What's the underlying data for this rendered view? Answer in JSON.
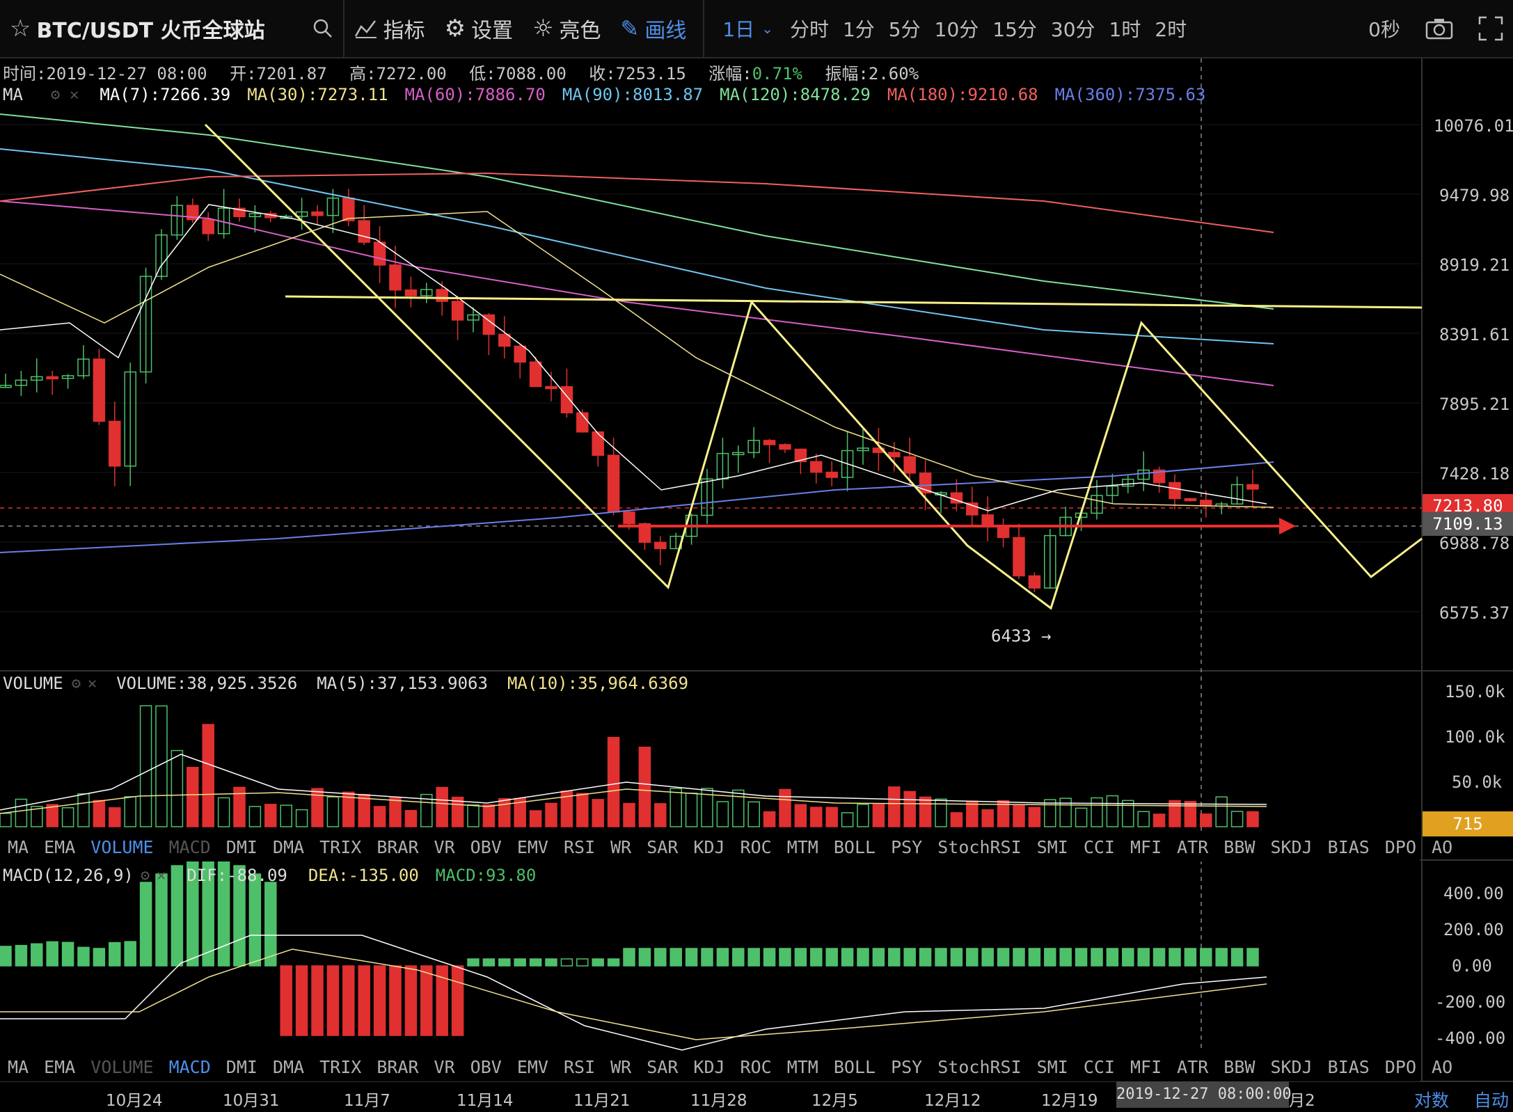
{
  "topbar": {
    "symbol": "BTC/USDT 火币全球站",
    "indicators": "指标",
    "settings": "设置",
    "theme": "亮色",
    "draw": "画线",
    "timeframes": [
      "1日",
      "分时",
      "1分",
      "5分",
      "10分",
      "15分",
      "30分",
      "1时",
      "2时"
    ],
    "active_timeframe": "1日",
    "countdown": "0秒"
  },
  "ohlc": {
    "time": "时间:2019-12-27 08:00",
    "open": "开:7201.87",
    "high": "高:7272.00",
    "low": "低:7088.00",
    "close": "收:7253.15",
    "change_label": "涨幅:",
    "change": "0.71%",
    "amp_label": "振幅:",
    "amp": "2.60%"
  },
  "ma_legend": {
    "title": "MA",
    "items": [
      {
        "text": "MA(7):7266.39",
        "color": "#ffffff"
      },
      {
        "text": "MA(30):7273.11",
        "color": "#f2e38f"
      },
      {
        "text": "MA(60):7886.70",
        "color": "#d860c8"
      },
      {
        "text": "MA(90):8013.87",
        "color": "#6ec6f0"
      },
      {
        "text": "MA(120):8478.29",
        "color": "#7fe29a"
      },
      {
        "text": "MA(180):9210.68",
        "color": "#f06060"
      },
      {
        "text": "MA(360):7375.63",
        "color": "#6a7fe8"
      }
    ]
  },
  "price_axis": [
    "10076.01",
    "9479.98",
    "8919.21",
    "8391.61",
    "7895.21",
    "7428.18",
    "6988.78",
    "6575.37"
  ],
  "price_tags": {
    "current": "7213.80",
    "cursor": "7109.13"
  },
  "annotation_low": "6433",
  "volume": {
    "title": "VOLUME",
    "value": "VOLUME:38,925.3526",
    "ma5": "MA(5):37,153.9063",
    "ma10": "MA(10):35,964.6369",
    "axis": [
      "150.0k",
      "100.0k",
      "50.0k"
    ],
    "tag": "715"
  },
  "indicator_tabs": [
    "MA",
    "EMA",
    "VOLUME",
    "MACD",
    "DMI",
    "DMA",
    "TRIX",
    "BRAR",
    "VR",
    "OBV",
    "EMV",
    "RSI",
    "WR",
    "SAR",
    "KDJ",
    "ROC",
    "MTM",
    "BOLL",
    "PSY",
    "StochRSI",
    "SMI",
    "CCI",
    "MFI",
    "ATR",
    "BBW",
    "SKDJ",
    "BIAS",
    "DPO",
    "AO"
  ],
  "macd": {
    "title": "MACD(12,26,9)",
    "dif": "DIF:-88.09",
    "dea": "DEA:-135.00",
    "macd": "MACD:93.80",
    "axis": [
      "400.00",
      "200.00",
      "0.00",
      "-200.00",
      "-400.00"
    ]
  },
  "time_axis": [
    "10月24",
    "10月31",
    "11月7",
    "11月14",
    "11月21",
    "11月28",
    "12月5",
    "12月12",
    "12月19",
    "月2"
  ],
  "cursor_time": "2019-12-27 08:00:00",
  "bottom_right": {
    "log": "对数",
    "auto": "自动"
  }
}
